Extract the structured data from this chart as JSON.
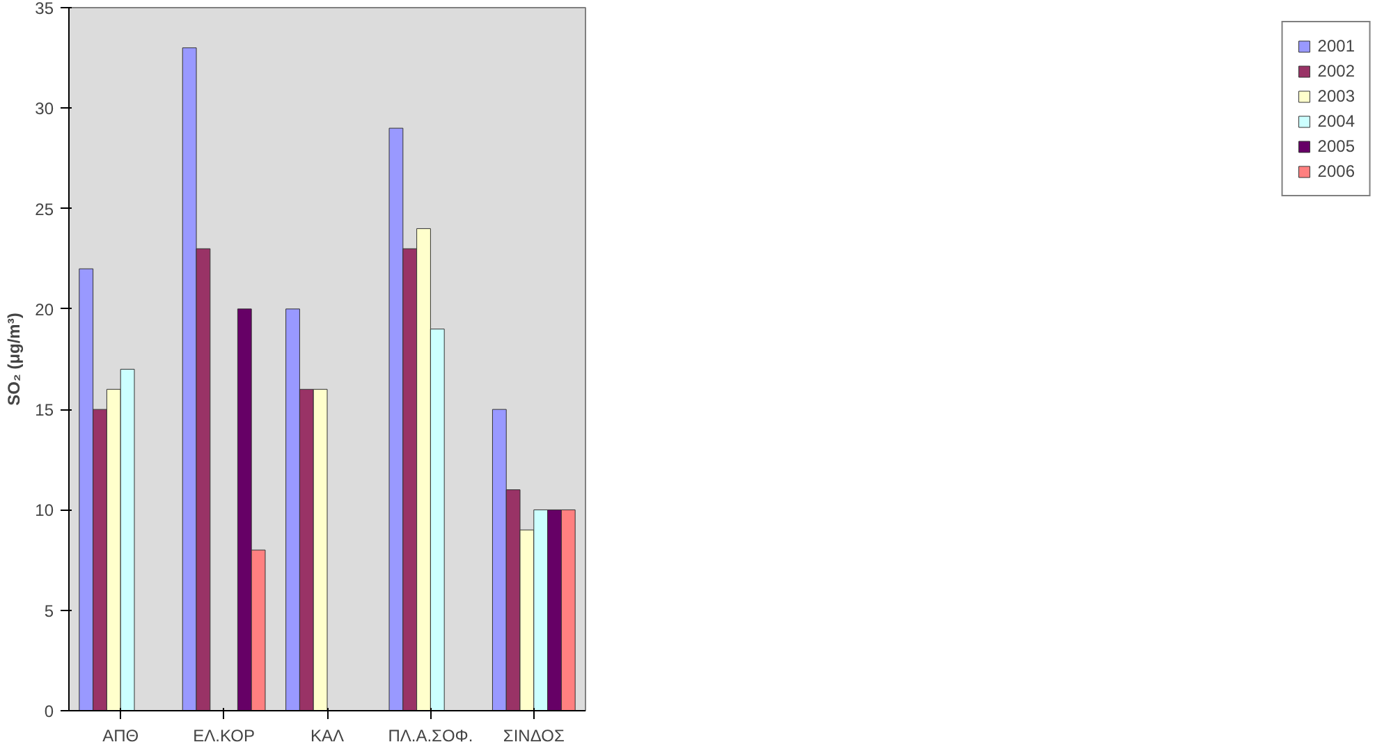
{
  "chart_data": {
    "type": "bar",
    "ylabel": "SO₂ (μg/m³)",
    "categories": [
      "ΑΠΘ",
      "ΕΛ.ΚΟΡ",
      "ΚΑΛ",
      "ΠΛ.Α.ΣΟΦ.",
      "ΣΙΝΔΟΣ"
    ],
    "series": [
      {
        "name": "2001",
        "color": "#9999ff",
        "values": [
          22,
          33,
          20,
          29,
          15
        ]
      },
      {
        "name": "2002",
        "color": "#993366",
        "values": [
          15,
          23,
          16,
          23,
          11
        ]
      },
      {
        "name": "2003",
        "color": "#ffffcc",
        "values": [
          16,
          null,
          16,
          24,
          9
        ]
      },
      {
        "name": "2004",
        "color": "#ccffff",
        "values": [
          17,
          null,
          null,
          19,
          10
        ]
      },
      {
        "name": "2005",
        "color": "#660066",
        "values": [
          null,
          20,
          null,
          null,
          10
        ]
      },
      {
        "name": "2006",
        "color": "#ff8080",
        "values": [
          null,
          8,
          null,
          null,
          10
        ]
      }
    ],
    "ylim": [
      0,
      35
    ],
    "yticks": [
      0,
      5,
      10,
      15,
      20,
      25,
      30,
      35
    ],
    "legend": "right"
  }
}
